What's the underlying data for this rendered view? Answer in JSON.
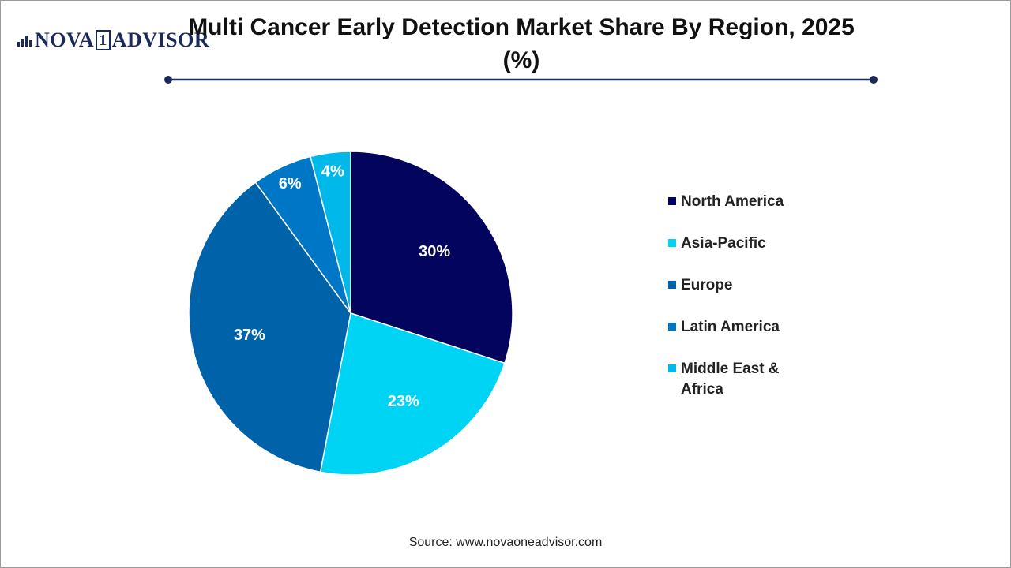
{
  "logo": {
    "left": "NOVA",
    "mark": "1",
    "right": "ADVISOR"
  },
  "source": "Source: www.novaoneadvisor.com",
  "chart_data": {
    "type": "pie",
    "title": "Multi Cancer Early Detection Market Share By Region, 2025 (%)",
    "categories": [
      "North America",
      "Asia-Pacific",
      "Europe",
      "Latin America",
      "Middle East & Africa"
    ],
    "values": [
      30,
      23,
      37,
      6,
      4
    ],
    "value_labels": [
      "30%",
      "23%",
      "37%",
      "6%",
      "4%"
    ],
    "colors": [
      "#03045e",
      "#00d4f5",
      "#0062a8",
      "#0077c6",
      "#00b8ea"
    ]
  }
}
